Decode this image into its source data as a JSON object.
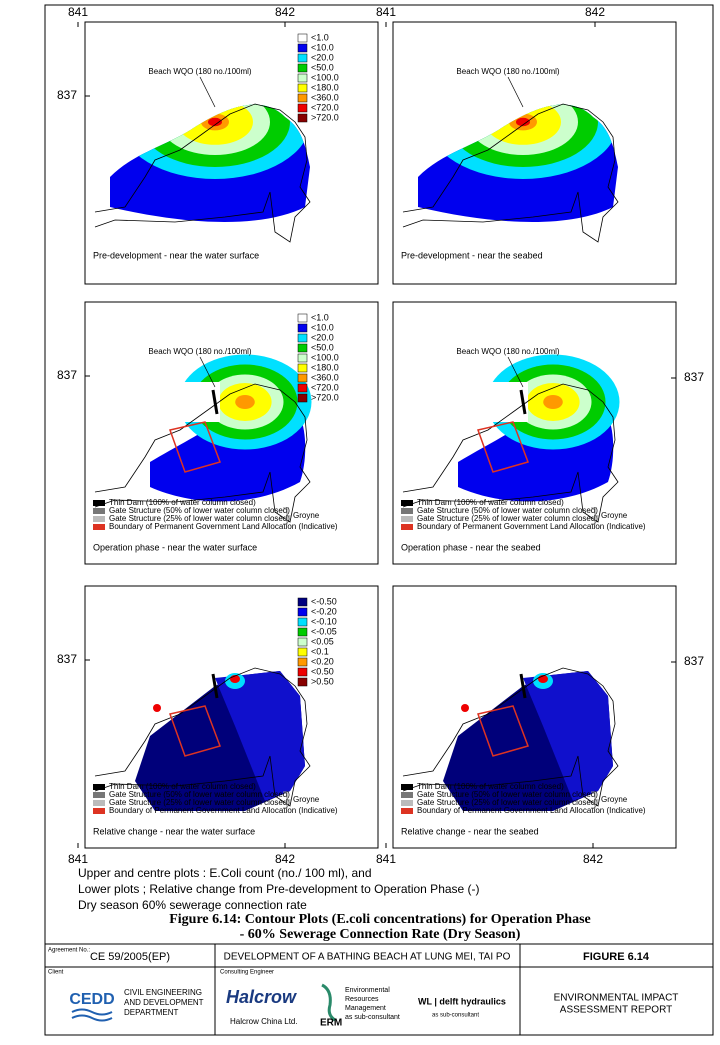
{
  "panels": [
    {
      "caption": "Pre-development - near the water surface",
      "annotation": "Beach WQO (180 no./100ml)",
      "top_ticks": [
        "841",
        "842"
      ],
      "left_tick": "837",
      "style": "concentration",
      "legend": "concentration"
    },
    {
      "caption": "Pre-development - near the seabed",
      "annotation": "Beach WQO (180 no./100ml)",
      "top_ticks": [
        "841",
        "842"
      ],
      "style": "concentration"
    },
    {
      "caption": "Operation phase - near the water surface",
      "annotation": "Beach WQO (180 no./100ml)",
      "left_tick": "837",
      "style": "operation",
      "legend": "concentration",
      "key": true
    },
    {
      "caption": "Operation phase - near the seabed",
      "annotation": "Beach WQO (180 no./100ml)",
      "right_tick": "837",
      "style": "operation",
      "key": true
    },
    {
      "caption": "Relative change - near the water surface",
      "left_tick": "837",
      "bottom_ticks": [
        "841",
        "842"
      ],
      "style": "relative",
      "legend": "relative_change",
      "key": true
    },
    {
      "caption": "Relative change - near the seabed",
      "right_tick": "837",
      "bottom_ticks": [
        "841",
        "842"
      ],
      "style": "relative",
      "key": true
    }
  ],
  "legends": {
    "concentration": [
      {
        "label": "<1.0",
        "color": "#ffffff"
      },
      {
        "label": "<10.0",
        "color": "#0000ee"
      },
      {
        "label": "<20.0",
        "color": "#00e0ff"
      },
      {
        "label": "<50.0",
        "color": "#00cc00"
      },
      {
        "label": "<100.0",
        "color": "#ccffcc"
      },
      {
        "label": "<180.0",
        "color": "#ffff00"
      },
      {
        "label": "<360.0",
        "color": "#ff9900"
      },
      {
        "label": "<720.0",
        "color": "#ee0000"
      },
      {
        "label": ">720.0",
        "color": "#880000"
      }
    ],
    "relative_change": [
      {
        "label": "<-0.50",
        "color": "#000080"
      },
      {
        "label": "<-0.20",
        "color": "#0000ee"
      },
      {
        "label": "<-0.10",
        "color": "#00e0ff"
      },
      {
        "label": "<-0.05",
        "color": "#00cc00"
      },
      {
        "label": "<0.05",
        "color": "#ccffcc"
      },
      {
        "label": "<0.1",
        "color": "#ffff00"
      },
      {
        "label": "<0.20",
        "color": "#ff9900"
      },
      {
        "label": "<0.50",
        "color": "#ee0000"
      },
      {
        "label": ">0.50",
        "color": "#880000"
      }
    ]
  },
  "key": {
    "items": [
      {
        "label": "Thin Dam (100% of water column closed)",
        "color": "#000000"
      },
      {
        "label": "Gate Structure (50% of lower water column closed)",
        "color": "#777777"
      },
      {
        "label": "Gate Structure (25% of lower water column closed)",
        "color": "#bbbbbb"
      },
      {
        "label": "Boundary of Permanent Government Land Allocation (Indicative)",
        "color": "#dd3322"
      }
    ],
    "group_label": "Groyne"
  },
  "notes": [
    "Upper and centre plots : E.Coli count (no./ 100 ml), and",
    "Lower plots ; Relative change from Pre-development to Operation Phase (-)",
    "Dry season 60% sewerage connection rate"
  ],
  "caption": [
    "Figure 6.14:  Contour Plots (E.coli concentrations) for Operation Phase",
    "- 60% Sewerage Connection Rate (Dry Season)"
  ],
  "title_block": {
    "agreement_label": "Agreement No.:",
    "agreement": "CE 59/2005(EP)",
    "project": "DEVELOPMENT OF A BATHING BEACH AT LUNG MEI, TAI PO",
    "figure": "FIGURE 6.14",
    "client_label": "Client",
    "client_logo": "CEDD",
    "client_name": [
      "CIVIL ENGINEERING",
      "AND DEVELOPMENT",
      "DEPARTMENT"
    ],
    "consultant_label": "Consulting Engineer",
    "consultant_logo": "Halcrow",
    "consultant_name": "Halcrow China Ltd.",
    "erm_logo": "ERM",
    "erm_name": [
      "Environmental",
      "Resources",
      "Management",
      "as sub-consultant"
    ],
    "wl_logo": "WL | delft hydraulics",
    "wl_sub": "as sub-consultant",
    "report": [
      "ENVIRONMENTAL IMPACT",
      "ASSESSMENT REPORT"
    ]
  }
}
